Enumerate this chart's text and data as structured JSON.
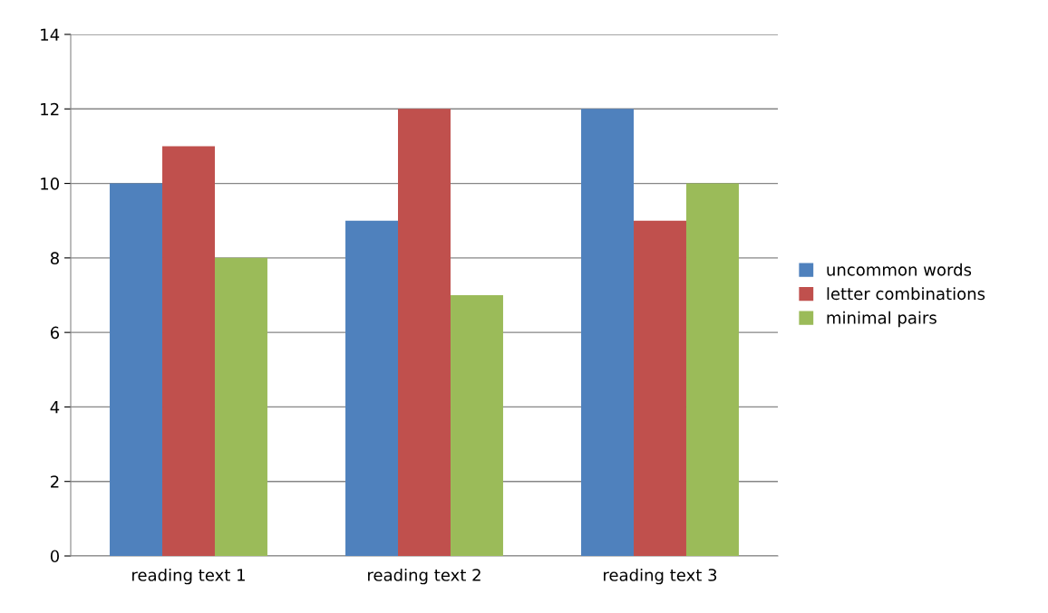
{
  "chart_data": {
    "type": "bar",
    "categories": [
      "reading text 1",
      "reading text 2",
      "reading text 3"
    ],
    "series": [
      {
        "name": "uncommon words",
        "color": "#4f81bd",
        "values": [
          10,
          9,
          12
        ]
      },
      {
        "name": "letter combinations",
        "color": "#c0504d",
        "values": [
          11,
          12,
          9
        ]
      },
      {
        "name": "minimal pairs",
        "color": "#9bbb59",
        "values": [
          8,
          7,
          10
        ]
      }
    ],
    "ylim": [
      0,
      14
    ],
    "yticks": [
      0,
      2,
      4,
      6,
      8,
      10,
      12,
      14
    ],
    "grid": "y",
    "legend": "right"
  }
}
